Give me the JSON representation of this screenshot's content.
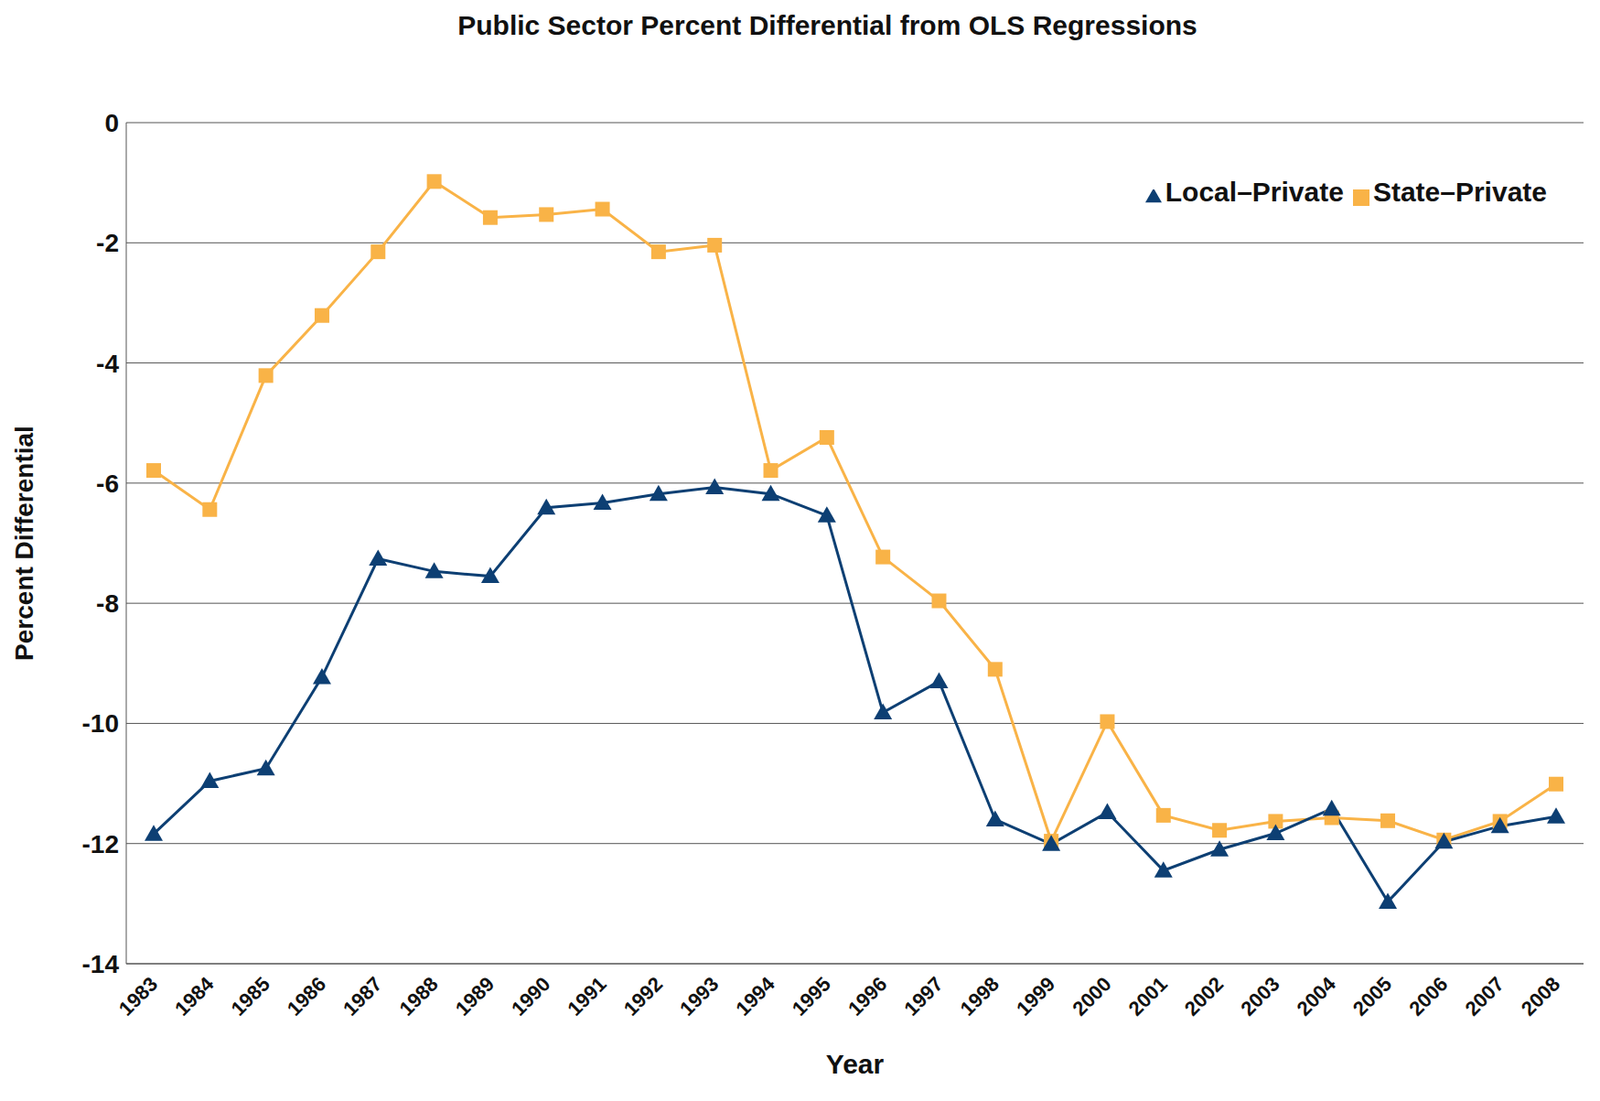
{
  "chart_data": {
    "type": "line",
    "title": "Public Sector Percent Differential from OLS Regressions",
    "x_label": "Year",
    "y_label": "Percent Differential",
    "categories": [
      "1983",
      "1984",
      "1985",
      "1986",
      "1987",
      "1988",
      "1989",
      "1990",
      "1991",
      "1992",
      "1993",
      "1994",
      "1995",
      "1996",
      "1997",
      "1998",
      "1999",
      "2000",
      "2001",
      "2002",
      "2003",
      "2004",
      "2005",
      "2006",
      "2007",
      "2008"
    ],
    "series": [
      {
        "name": "State–Private",
        "color": "#f9b347",
        "marker": "square",
        "values": [
          -5.79,
          -6.44,
          -4.21,
          -3.21,
          -2.15,
          -0.98,
          -1.58,
          -1.53,
          -1.44,
          -2.15,
          -2.04,
          -5.79,
          -5.24,
          -7.23,
          -7.96,
          -9.1,
          -11.96,
          -9.97,
          -11.53,
          -11.78,
          -11.63,
          -11.57,
          -11.62,
          -11.94,
          -11.63,
          -11.01
        ]
      },
      {
        "name": "Local–Private",
        "color": "#0d3f73",
        "marker": "triangle",
        "values": [
          -11.84,
          -10.96,
          -10.75,
          -9.23,
          -7.26,
          -7.47,
          -7.55,
          -6.41,
          -6.33,
          -6.18,
          -6.07,
          -6.18,
          -6.54,
          -9.82,
          -9.3,
          -11.6,
          -12.01,
          -11.48,
          -12.45,
          -12.1,
          -11.83,
          -11.42,
          -12.97,
          -11.97,
          -11.71,
          -11.55
        ]
      }
    ],
    "ylim": [
      -14,
      0
    ],
    "yticks": [
      -14,
      -12,
      -10,
      -8,
      -6,
      -4,
      -2,
      0
    ],
    "grid": true,
    "legend": "upper right"
  }
}
